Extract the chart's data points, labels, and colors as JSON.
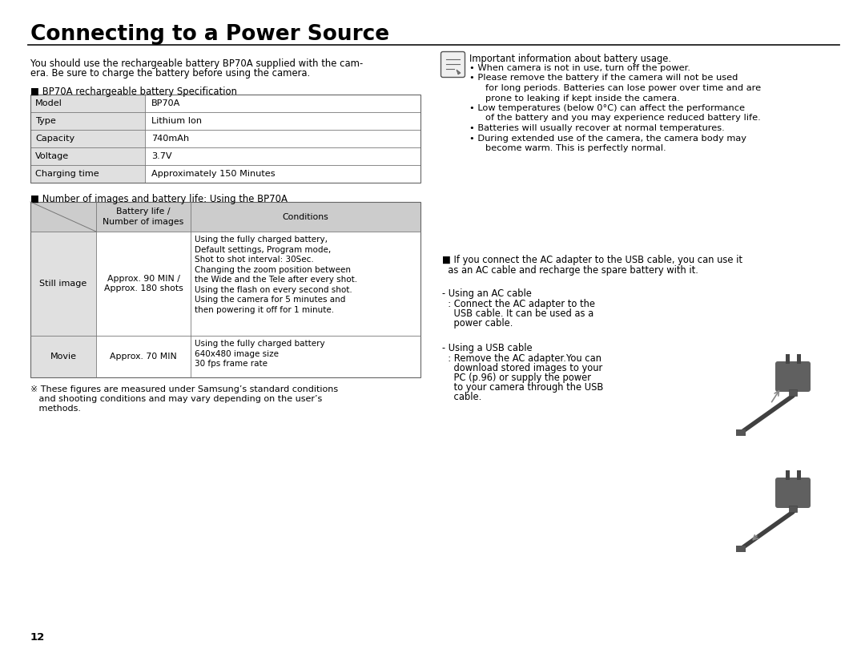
{
  "title": "Connecting to a Power Source",
  "bg_color": "#ffffff",
  "intro_l1": "You should use the rechargeable battery BP70A supplied with the cam-",
  "intro_l2": "era. Be sure to charge the battery before using the camera.",
  "spec_title": "■ BP70A rechargeable battery Specification",
  "spec_rows": [
    [
      "Model",
      "BP70A"
    ],
    [
      "Type",
      "Lithium Ion"
    ],
    [
      "Capacity",
      "740mAh"
    ],
    [
      "Voltage",
      "3.7V"
    ],
    [
      "Charging time",
      "Approximately 150 Minutes"
    ]
  ],
  "bat_table_title": "■ Number of images and battery life: Using the BP70A",
  "bat_hdr_c2": "Battery life /\nNumber of images",
  "bat_hdr_c3": "Conditions",
  "still_c2": "Approx. 90 MIN /\nApprox. 180 shots",
  "still_c3": "Using the fully charged battery,\nDefault settings, Program mode,\nShot to shot interval: 30Sec.\nChanging the zoom position between\nthe Wide and the Tele after every shot.\nUsing the flash on every second shot.\nUsing the camera for 5 minutes and\nthen powering it off for 1 minute.",
  "movie_c2": "Approx. 70 MIN",
  "movie_c3": "Using the fully charged battery\n640x480 image size\n30 fps frame rate",
  "footnote_l1": "※ These figures are measured under Samsung’s standard conditions",
  "footnote_l2": "   and shooting conditions and may vary depending on the user’s",
  "footnote_l3": "   methods.",
  "page_num": "12",
  "note_title": "Important information about battery usage.",
  "bullets": [
    "When camera is not in use, turn off the power.",
    "Please remove the battery if the camera will not be used\n    for long periods. Batteries can lose power over time and are\n    prone to leaking if kept inside the camera.",
    "Low temperatures (below 0°C) can affect the performance\n    of the battery and you may experience reduced battery life.",
    "Batteries will usually recover at normal temperatures.",
    "During extended use of the camera, the camera body may\n    become warm. This is perfectly normal."
  ],
  "ac_section_l1": "■ If you connect the AC adapter to the USB cable, you can use it",
  "ac_section_l2": "  as an AC cable and recharge the spare battery with it.",
  "ac_hdr": "- Using an AC cable",
  "ac_body_l1": "  : Connect the AC adapter to the",
  "ac_body_l2": "    USB cable. It can be used as a",
  "ac_body_l3": "    power cable.",
  "usb_hdr": "- Using a USB cable",
  "usb_body_l1": "  : Remove the AC adapter.You can",
  "usb_body_l2": "    download stored images to your",
  "usb_body_l3": "    PC (p.96) or supply the power",
  "usb_body_l4": "    to your camera through the USB",
  "usb_body_l5": "    cable.",
  "gray_dark": "#5a5a5a",
  "gray_mid": "#888888",
  "gray_light": "#c8c8c8",
  "table_bg": "#e0e0e0",
  "header_bg": "#cccccc"
}
